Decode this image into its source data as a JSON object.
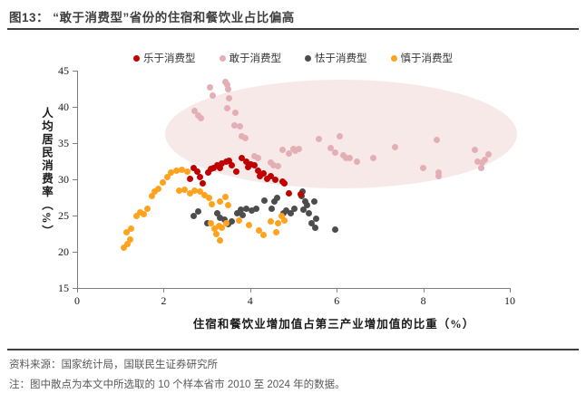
{
  "page": {
    "title": "图13： “敢于消费型”省份的住宿和餐饮业占比偏高",
    "source": "资料来源：国家统计局，国联民生证券研究所",
    "note": "注：图中散点为本文中所选取的 10 个样本省市 2010 至 2024 年的数据。"
  },
  "chart_data": {
    "type": "scatter",
    "title": "图13： “敢于消费型”省份的住宿和餐饮业占比偏高",
    "xlabel": "住宿和餐饮业增加值占第三产业增加值的比重（%）",
    "ylabel": "人均居民消费率（%）",
    "xlim": [
      0,
      10
    ],
    "ylim": [
      15,
      45
    ],
    "xticks": [
      0,
      2,
      4,
      6,
      8,
      10
    ],
    "yticks": [
      15,
      20,
      25,
      30,
      35,
      40,
      45
    ],
    "grid": false,
    "legend_position": "top",
    "highlight_ellipse": {
      "cx": 6.1,
      "cy": 36.2,
      "rx": 4.07,
      "ry": 7.5,
      "color": "#F8E9E9"
    },
    "series": [
      {
        "name": "乐于消费型",
        "color": "#C00000",
        "points": [
          [
            2.62,
            30.1
          ],
          [
            2.69,
            31.6
          ],
          [
            2.78,
            31.1
          ],
          [
            2.85,
            30.3
          ],
          [
            2.9,
            29.5
          ],
          [
            3.02,
            30.9
          ],
          [
            3.09,
            31.4
          ],
          [
            3.16,
            31.6
          ],
          [
            3.23,
            31.9
          ],
          [
            3.3,
            31.6
          ],
          [
            3.35,
            32.2
          ],
          [
            3.44,
            32.4
          ],
          [
            3.51,
            32.6
          ],
          [
            3.58,
            32.0
          ],
          [
            3.67,
            31.1
          ],
          [
            3.81,
            32.9
          ],
          [
            3.9,
            32.4
          ],
          [
            3.95,
            31.7
          ],
          [
            4.02,
            32.1
          ],
          [
            4.09,
            31.9
          ],
          [
            4.18,
            31.2
          ],
          [
            4.23,
            30.5
          ],
          [
            4.3,
            30.8
          ],
          [
            4.39,
            30.1
          ],
          [
            4.47,
            30.4
          ],
          [
            4.58,
            29.9
          ],
          [
            4.75,
            29.7
          ],
          [
            4.79,
            29.4
          ],
          [
            4.9,
            28.1
          ],
          [
            5.16,
            27.9
          ]
        ]
      },
      {
        "name": "敢于消费型",
        "color": "#E3AEB4",
        "points": [
          [
            2.72,
            39.4
          ],
          [
            2.8,
            38.8
          ],
          [
            2.86,
            38.4
          ],
          [
            3.07,
            42.7
          ],
          [
            3.14,
            41.6
          ],
          [
            3.42,
            43.4
          ],
          [
            3.47,
            43.1
          ],
          [
            3.5,
            42.4
          ],
          [
            3.52,
            41.2
          ],
          [
            3.46,
            39.8
          ],
          [
            3.66,
            39.2
          ],
          [
            3.63,
            37.5
          ],
          [
            3.77,
            37.3
          ],
          [
            3.81,
            36.0
          ],
          [
            3.88,
            35.7
          ],
          [
            4.09,
            33.2
          ],
          [
            4.19,
            32.9
          ],
          [
            4.47,
            32.3
          ],
          [
            4.54,
            32.0
          ],
          [
            4.65,
            31.8
          ],
          [
            4.75,
            34.1
          ],
          [
            4.89,
            33.6
          ],
          [
            5.0,
            34.2
          ],
          [
            5.05,
            33.9
          ],
          [
            5.12,
            34.2
          ],
          [
            5.59,
            35.6
          ],
          [
            5.87,
            34.3
          ],
          [
            5.97,
            33.7
          ],
          [
            6.06,
            36.0
          ],
          [
            6.15,
            33.3
          ],
          [
            6.22,
            32.9
          ],
          [
            6.29,
            32.9
          ],
          [
            6.46,
            32.5
          ],
          [
            6.85,
            32.9
          ],
          [
            7.34,
            34.5
          ],
          [
            8.0,
            31.6
          ],
          [
            8.32,
            35.4
          ],
          [
            8.35,
            31.0
          ],
          [
            8.36,
            30.4
          ],
          [
            9.19,
            34.1
          ],
          [
            9.26,
            32.5
          ],
          [
            9.33,
            31.6
          ],
          [
            9.36,
            32.3
          ],
          [
            9.43,
            32.7
          ],
          [
            9.5,
            33.5
          ]
        ]
      },
      {
        "name": "怯于消费型",
        "color": "#4D4D4D",
        "points": [
          [
            2.69,
            25.0
          ],
          [
            2.8,
            25.6
          ],
          [
            3.0,
            24.0
          ],
          [
            3.23,
            25.3
          ],
          [
            3.3,
            24.7
          ],
          [
            3.41,
            24.5
          ],
          [
            3.49,
            23.8
          ],
          [
            3.58,
            24.2
          ],
          [
            3.7,
            25.3
          ],
          [
            3.79,
            25.8
          ],
          [
            3.83,
            25.1
          ],
          [
            3.9,
            25.9
          ],
          [
            4.04,
            25.7
          ],
          [
            4.14,
            26.0
          ],
          [
            4.32,
            27.1
          ],
          [
            4.49,
            25.9
          ],
          [
            4.56,
            26.9
          ],
          [
            4.63,
            27.4
          ],
          [
            4.77,
            25.3
          ],
          [
            4.84,
            25.7
          ],
          [
            4.93,
            25.3
          ],
          [
            5.03,
            25.9
          ],
          [
            5.2,
            28.3
          ],
          [
            5.19,
            27.7
          ],
          [
            5.28,
            27.0
          ],
          [
            5.31,
            26.5
          ],
          [
            5.24,
            25.8
          ],
          [
            5.36,
            25.3
          ],
          [
            5.49,
            26.9
          ],
          [
            5.52,
            24.6
          ],
          [
            5.42,
            23.9
          ],
          [
            5.5,
            23.3
          ],
          [
            5.97,
            23.1
          ]
        ]
      },
      {
        "name": "慎于消费型",
        "color": "#FFA21E",
        "points": [
          [
            1.08,
            20.6
          ],
          [
            1.17,
            21.1
          ],
          [
            1.22,
            21.7
          ],
          [
            1.15,
            22.7
          ],
          [
            1.25,
            23.2
          ],
          [
            1.38,
            24.9
          ],
          [
            1.45,
            25.4
          ],
          [
            1.55,
            25.2
          ],
          [
            1.62,
            25.9
          ],
          [
            1.72,
            27.7
          ],
          [
            1.8,
            28.3
          ],
          [
            1.88,
            28.7
          ],
          [
            1.98,
            29.6
          ],
          [
            2.08,
            30.3
          ],
          [
            2.18,
            30.9
          ],
          [
            2.3,
            31.2
          ],
          [
            2.42,
            31.3
          ],
          [
            2.55,
            31.1
          ],
          [
            2.35,
            28.4
          ],
          [
            2.48,
            28.6
          ],
          [
            2.6,
            28.1
          ],
          [
            2.72,
            28.4
          ],
          [
            2.85,
            28.3
          ],
          [
            2.95,
            27.8
          ],
          [
            3.05,
            27.4
          ],
          [
            3.12,
            26.6
          ],
          [
            3.3,
            27.0
          ],
          [
            3.42,
            27.6
          ],
          [
            3.5,
            26.4
          ],
          [
            3.1,
            23.9
          ],
          [
            3.18,
            23.2
          ],
          [
            3.22,
            22.4
          ],
          [
            3.28,
            23.6
          ],
          [
            3.35,
            23.3
          ],
          [
            3.3,
            21.6
          ],
          [
            3.45,
            23.9
          ],
          [
            3.75,
            24.3
          ],
          [
            3.98,
            23.7
          ],
          [
            4.2,
            22.9
          ],
          [
            4.3,
            22.3
          ],
          [
            4.48,
            24.2
          ],
          [
            4.61,
            22.7
          ],
          [
            4.65,
            23.9
          ],
          [
            4.72,
            25.0
          ],
          [
            4.8,
            24.3
          ]
        ]
      }
    ]
  }
}
